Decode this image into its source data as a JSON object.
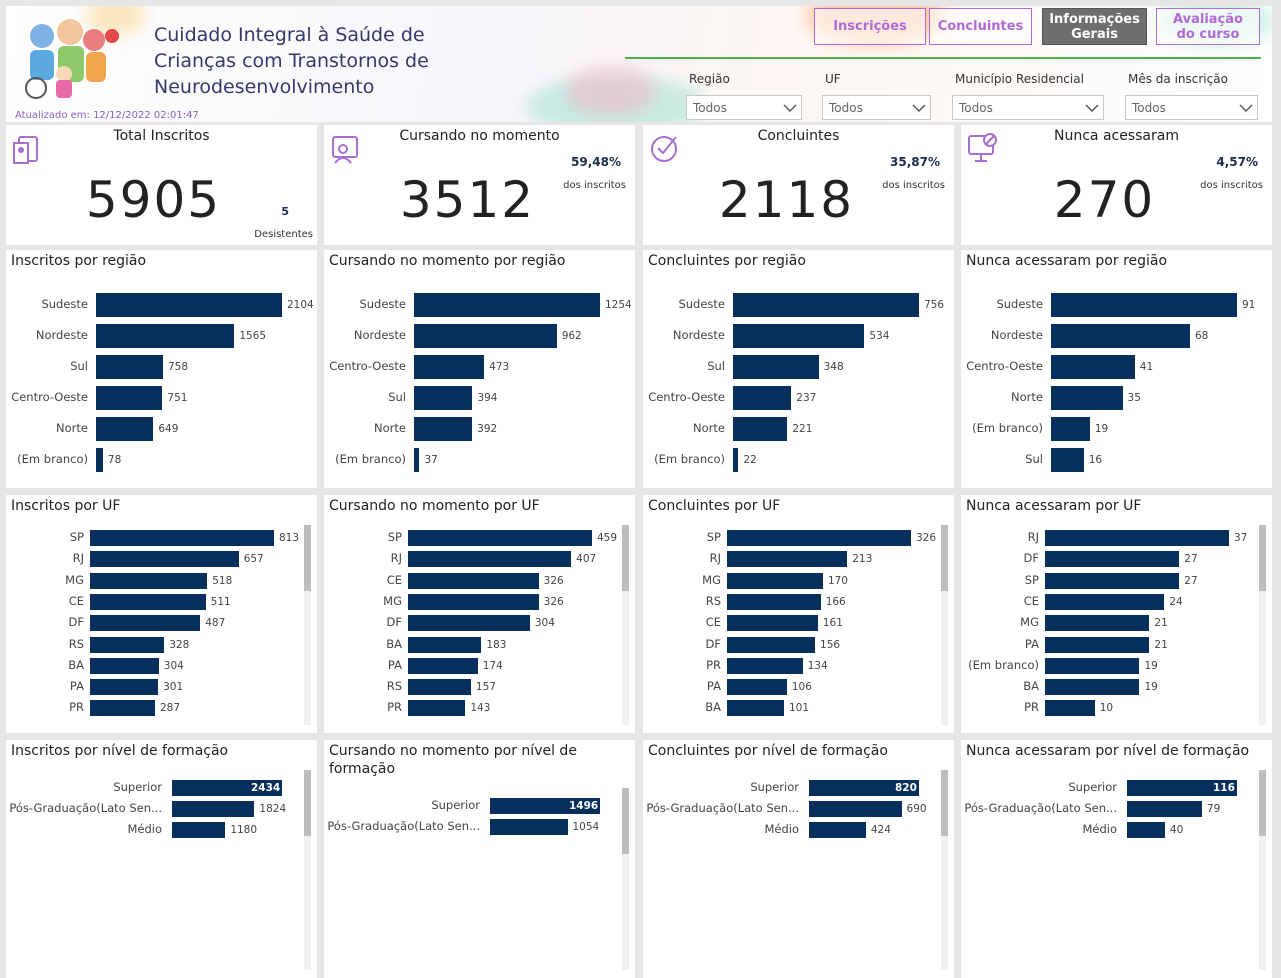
{
  "header": {
    "title_lines": [
      "Cuidado Integral à Saúde de",
      "Crianças com Transtornos de",
      "Neurodesenvolvimento"
    ],
    "updated": "Atualizado em: 12/12/2022 02:01:47"
  },
  "buttons": [
    "Inscrições",
    "Concluintes",
    "Informações Gerais",
    "Avaliação do curso"
  ],
  "filters": [
    {
      "label": "Região",
      "value": "Todos"
    },
    {
      "label": "UF",
      "value": "Todos"
    },
    {
      "label": "Município Residencial",
      "value": "Todos"
    },
    {
      "label": "Mês da inscrição",
      "value": "Todos"
    }
  ],
  "kpis": [
    {
      "title": "Total Inscritos",
      "value": 5905,
      "sub_value": 5,
      "sub_label": "Desistentes"
    },
    {
      "title": "Cursando no momento",
      "value": 3512,
      "pct": "59,48%",
      "pct_label": "dos inscritos"
    },
    {
      "title": "Concluintes",
      "value": 2118,
      "pct": "35,87%",
      "pct_label": "dos inscritos"
    },
    {
      "title": "Nunca acessaram",
      "value": 270,
      "pct": "4,57%",
      "pct_label": "dos inscritos"
    }
  ],
  "chart_data": [
    {
      "type": "bar",
      "title": "Inscritos por região",
      "color": "#062f5c",
      "categories": [
        "Sudeste",
        "Nordeste",
        "Sul",
        "Centro-Oeste",
        "Norte",
        "(Em branco)"
      ],
      "values": [
        2104,
        1565,
        758,
        751,
        649,
        78
      ]
    },
    {
      "type": "bar",
      "title": "Cursando no momento por região",
      "color": "#062f5c",
      "categories": [
        "Sudeste",
        "Nordeste",
        "Centro-Oeste",
        "Sul",
        "Norte",
        "(Em branco)"
      ],
      "values": [
        1254,
        962,
        473,
        394,
        392,
        37
      ]
    },
    {
      "type": "bar",
      "title": "Concluintes por região",
      "color": "#062f5c",
      "categories": [
        "Sudeste",
        "Nordeste",
        "Sul",
        "Centro-Oeste",
        "Norte",
        "(Em branco)"
      ],
      "values": [
        756,
        534,
        348,
        237,
        221,
        22
      ]
    },
    {
      "type": "bar",
      "title": "Nunca acessaram por região",
      "color": "#062f5c",
      "categories": [
        "Sudeste",
        "Nordeste",
        "Centro-Oeste",
        "Norte",
        "(Em branco)",
        "Sul"
      ],
      "values": [
        91,
        68,
        41,
        35,
        19,
        16
      ]
    },
    {
      "type": "bar",
      "title": "Inscritos por UF",
      "color": "#062f5c",
      "categories": [
        "SP",
        "RJ",
        "MG",
        "CE",
        "DF",
        "RS",
        "BA",
        "PA",
        "PR"
      ],
      "values": [
        813,
        657,
        518,
        511,
        487,
        328,
        304,
        301,
        287
      ]
    },
    {
      "type": "bar",
      "title": "Cursando no momento por UF",
      "color": "#062f5c",
      "categories": [
        "SP",
        "RJ",
        "CE",
        "MG",
        "DF",
        "BA",
        "PA",
        "RS",
        "PR"
      ],
      "values": [
        459,
        407,
        326,
        326,
        304,
        183,
        174,
        157,
        143
      ]
    },
    {
      "type": "bar",
      "title": "Concluintes por UF",
      "color": "#062f5c",
      "categories": [
        "SP",
        "RJ",
        "MG",
        "RS",
        "CE",
        "DF",
        "PR",
        "PA",
        "BA"
      ],
      "values": [
        326,
        213,
        170,
        166,
        161,
        156,
        134,
        106,
        101
      ]
    },
    {
      "type": "bar",
      "title": "Nunca acessaram por UF",
      "color": "#062f5c",
      "categories": [
        "RJ",
        "DF",
        "SP",
        "CE",
        "MG",
        "PA",
        "(Em branco)",
        "BA",
        "PR"
      ],
      "values": [
        37,
        27,
        27,
        24,
        21,
        21,
        19,
        19,
        10
      ]
    },
    {
      "type": "bar",
      "title": "Inscritos por nível de formação",
      "color": "#062f5c",
      "categories": [
        "Superior",
        "Pós-Graduação(Lato Sen...",
        "Médio"
      ],
      "values": [
        2434,
        1824,
        1180
      ]
    },
    {
      "type": "bar",
      "title": "Cursando no momento por nível de formação",
      "color": "#062f5c",
      "categories": [
        "Superior",
        "Pós-Graduação(Lato Sen..."
      ],
      "values": [
        1496,
        1054
      ]
    },
    {
      "type": "bar",
      "title": "Concluintes por nível de formação",
      "color": "#062f5c",
      "categories": [
        "Superior",
        "Pós-Graduação(Lato Sen...",
        "Médio"
      ],
      "values": [
        820,
        690,
        424
      ]
    },
    {
      "type": "bar",
      "title": "Nunca acessaram por nível de formação",
      "color": "#062f5c",
      "categories": [
        "Superior",
        "Pós-Graduação(Lato Sen...",
        "Médio"
      ],
      "values": [
        116,
        79,
        40
      ]
    }
  ]
}
